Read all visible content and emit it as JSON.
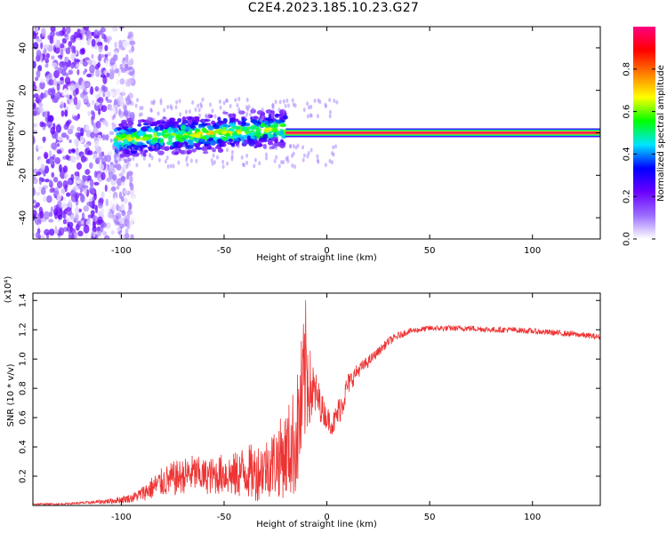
{
  "title": "C2E4.2023.185.10.23.G27",
  "chart_data": [
    {
      "type": "heatmap",
      "xlabel": "Height of straight line (km)",
      "ylabel": "Frequency (Hz)",
      "xlim": [
        -143,
        133
      ],
      "ylim": [
        -50,
        50
      ],
      "xticks": [
        -100,
        -50,
        0,
        50,
        100
      ],
      "xtick_labels": [
        "-100",
        "-50",
        "0",
        "50",
        "100"
      ],
      "yticks": [
        -40,
        -20,
        0,
        20,
        40
      ],
      "ytick_labels": [
        "-40",
        "-20",
        "0",
        "20",
        "40"
      ],
      "colorbar": {
        "label": "Normalized spectral amplitude",
        "range": [
          0,
          1
        ],
        "ticks": [
          0.0,
          0.2,
          0.4,
          0.6,
          0.8
        ],
        "tick_labels": [
          "0.0",
          "0.2",
          "0.4",
          "0.6",
          "0.8"
        ],
        "colormap": [
          "#ffffff",
          "#9a6cff",
          "#6a00ff",
          "#0000ff",
          "#00e5ff",
          "#00ff00",
          "#ffff00",
          "#ff7f00",
          "#ff0000",
          "#ff0080"
        ]
      },
      "regions": [
        {
          "x_from": -143,
          "x_to": -100,
          "description_values": {
            "freq_spread": [
              -50,
              50
            ],
            "amplitude": 0.15
          }
        },
        {
          "x_from": -103,
          "x_to": -20,
          "description_values": {
            "freq_center": [
              -3,
              2
            ],
            "freq_width": 8,
            "amplitude_peak": 0.6
          }
        },
        {
          "x_from": -20,
          "x_to": 133,
          "description_values": {
            "freq_center": 0,
            "freq_width": 2,
            "amplitude_peak": 1.0
          }
        }
      ]
    },
    {
      "type": "line",
      "xlabel": "Height of straight line (km)",
      "ylabel": "SNR (10 * v/v)",
      "y_multiplier": "(x10⁴)",
      "xlim": [
        -143,
        133
      ],
      "ylim": [
        0,
        1.45
      ],
      "xticks": [
        -100,
        -50,
        0,
        50,
        100
      ],
      "xtick_labels": [
        "-100",
        "-50",
        "0",
        "50",
        "100"
      ],
      "yticks": [
        0.2,
        0.4,
        0.6,
        0.8,
        1.0,
        1.2,
        1.4
      ],
      "ytick_labels": [
        "0.2",
        "0.4",
        "0.6",
        "0.8",
        "1.0",
        "1.2",
        "1.4"
      ],
      "series_color": "#ee3333",
      "series": [
        {
          "x": [
            -143,
            -130,
            -115,
            -105,
            -95,
            -90,
            -85,
            -80,
            -75,
            -70,
            -65,
            -60,
            -55,
            -50,
            -45,
            -40,
            -35,
            -30,
            -25,
            -20,
            -15,
            -12,
            -10,
            -8,
            -5,
            -2,
            0,
            3,
            5,
            8,
            10,
            15,
            20,
            25,
            30,
            35,
            40,
            45,
            50,
            60,
            70,
            80,
            90,
            100,
            110,
            120,
            133
          ],
          "values": [
            0.01,
            0.01,
            0.02,
            0.03,
            0.05,
            0.08,
            0.12,
            0.16,
            0.18,
            0.2,
            0.22,
            0.2,
            0.2,
            0.22,
            0.2,
            0.24,
            0.22,
            0.26,
            0.3,
            0.35,
            0.45,
            0.7,
            0.95,
            0.8,
            0.75,
            0.65,
            0.6,
            0.55,
            0.62,
            0.72,
            0.82,
            0.92,
            0.98,
            1.05,
            1.12,
            1.16,
            1.19,
            1.2,
            1.21,
            1.21,
            1.21,
            1.2,
            1.2,
            1.19,
            1.18,
            1.17,
            1.15
          ],
          "noise_amplitude": [
            0.005,
            0.005,
            0.01,
            0.02,
            0.03,
            0.05,
            0.08,
            0.1,
            0.12,
            0.12,
            0.13,
            0.12,
            0.13,
            0.14,
            0.16,
            0.18,
            0.2,
            0.2,
            0.25,
            0.3,
            0.4,
            0.5,
            0.5,
            0.25,
            0.15,
            0.1,
            0.08,
            0.08,
            0.1,
            0.1,
            0.08,
            0.05,
            0.04,
            0.03,
            0.03,
            0.025,
            0.02,
            0.02,
            0.02,
            0.02,
            0.02,
            0.02,
            0.02,
            0.02,
            0.02,
            0.02,
            0.02
          ]
        }
      ]
    }
  ]
}
